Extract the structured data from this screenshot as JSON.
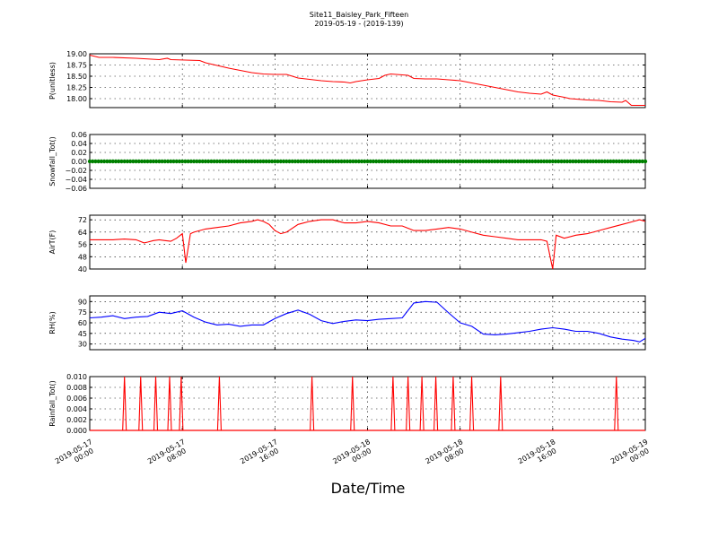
{
  "chart_data": {
    "type": "line",
    "title": "Site11_Baisley_Park_Fifteen",
    "subtitle": "2019-05-19 - (2019-139)",
    "xlabel": "Date/Time",
    "x_range_hours": [
      0,
      48
    ],
    "x_ticks": [
      {
        "hour": 0,
        "line1": "2019-05-17",
        "line2": "00:00"
      },
      {
        "hour": 8,
        "line1": "2019-05-17",
        "line2": "08:00"
      },
      {
        "hour": 16,
        "line1": "2019-05-17",
        "line2": "16:00"
      },
      {
        "hour": 24,
        "line1": "2019-05-18",
        "line2": "00:00"
      },
      {
        "hour": 32,
        "line1": "2019-05-18",
        "line2": "08:00"
      },
      {
        "hour": 40,
        "line1": "2019-05-18",
        "line2": "16:00"
      },
      {
        "hour": 48,
        "line1": "2019-05-19",
        "line2": "00:00"
      }
    ],
    "grid": true,
    "panels": [
      {
        "ylabel": "P(unitless)",
        "color": "#ff0000",
        "style": "line",
        "ylim": [
          17.8,
          19.0
        ],
        "yticks": [
          "19.00",
          "18.75",
          "18.50",
          "18.25",
          "18.00"
        ],
        "ytick_values": [
          19.0,
          18.75,
          18.5,
          18.25,
          18.0
        ],
        "series": [
          [
            0,
            18.97
          ],
          [
            0.8,
            18.92
          ],
          [
            2,
            18.92
          ],
          [
            4,
            18.9
          ],
          [
            6,
            18.87
          ],
          [
            6.7,
            18.9
          ],
          [
            7,
            18.87
          ],
          [
            9.5,
            18.85
          ],
          [
            10,
            18.8
          ],
          [
            11,
            18.74
          ],
          [
            12,
            18.68
          ],
          [
            13,
            18.63
          ],
          [
            14,
            18.58
          ],
          [
            15,
            18.55
          ],
          [
            16,
            18.54
          ],
          [
            17,
            18.54
          ],
          [
            17.5,
            18.5
          ],
          [
            18,
            18.46
          ],
          [
            19,
            18.43
          ],
          [
            20,
            18.4
          ],
          [
            21,
            18.38
          ],
          [
            22,
            18.37
          ],
          [
            22.5,
            18.35
          ],
          [
            23,
            18.38
          ],
          [
            24,
            18.42
          ],
          [
            25,
            18.45
          ],
          [
            25.5,
            18.52
          ],
          [
            26,
            18.55
          ],
          [
            27,
            18.53
          ],
          [
            27.5,
            18.52
          ],
          [
            28,
            18.45
          ],
          [
            29,
            18.44
          ],
          [
            30,
            18.44
          ],
          [
            31,
            18.42
          ],
          [
            32,
            18.4
          ],
          [
            33,
            18.35
          ],
          [
            34,
            18.3
          ],
          [
            35,
            18.25
          ],
          [
            36,
            18.2
          ],
          [
            37,
            18.15
          ],
          [
            38,
            18.12
          ],
          [
            39,
            18.1
          ],
          [
            39.5,
            18.15
          ],
          [
            40,
            18.08
          ],
          [
            41,
            18.03
          ],
          [
            41.5,
            18.0
          ],
          [
            42,
            17.99
          ],
          [
            43,
            17.97
          ],
          [
            44,
            17.96
          ],
          [
            45,
            17.93
          ],
          [
            46,
            17.92
          ],
          [
            46.3,
            17.96
          ],
          [
            46.8,
            17.85
          ],
          [
            48,
            17.85
          ]
        ]
      },
      {
        "ylabel": "Snowfall_Tot()",
        "color": "#008000",
        "style": "markers",
        "ylim": [
          -0.06,
          0.06
        ],
        "yticks": [
          "0.06",
          "0.04",
          "0.02",
          "0.00",
          "−0.02",
          "−0.04",
          "−0.06"
        ],
        "ytick_values": [
          0.06,
          0.04,
          0.02,
          0.0,
          -0.02,
          -0.04,
          -0.06
        ],
        "constant_value": 0.0,
        "sample_interval_hours": 0.25
      },
      {
        "ylabel": "AirT(F)",
        "color": "#ff0000",
        "style": "line",
        "ylim": [
          40,
          75
        ],
        "yticks": [
          "72",
          "64",
          "56",
          "48",
          "40"
        ],
        "ytick_values": [
          72,
          64,
          56,
          48,
          40
        ],
        "series": [
          [
            0,
            59
          ],
          [
            1,
            59
          ],
          [
            2,
            59
          ],
          [
            3,
            59.5
          ],
          [
            4,
            59
          ],
          [
            5,
            57.5
          ],
          [
            4.7,
            57
          ],
          [
            5.5,
            58.5
          ],
          [
            6,
            59
          ],
          [
            6.5,
            58.5
          ],
          [
            7,
            58
          ],
          [
            7.5,
            60
          ],
          [
            8,
            63
          ],
          [
            8.3,
            44
          ],
          [
            8.7,
            63
          ],
          [
            9,
            64
          ],
          [
            10,
            66
          ],
          [
            11,
            67
          ],
          [
            12,
            68
          ],
          [
            13,
            70
          ],
          [
            14,
            71
          ],
          [
            14.5,
            72
          ],
          [
            15,
            71
          ],
          [
            15.5,
            69
          ],
          [
            16,
            65
          ],
          [
            16.5,
            63
          ],
          [
            17,
            64
          ],
          [
            18,
            69
          ],
          [
            19,
            71
          ],
          [
            20,
            72
          ],
          [
            21,
            72
          ],
          [
            22,
            70
          ],
          [
            23,
            70
          ],
          [
            24,
            71
          ],
          [
            25,
            70
          ],
          [
            26,
            68
          ],
          [
            27,
            68
          ],
          [
            28,
            65
          ],
          [
            29,
            65
          ],
          [
            30,
            66
          ],
          [
            31,
            67
          ],
          [
            32,
            66
          ],
          [
            33,
            64
          ],
          [
            34,
            62
          ],
          [
            35,
            61
          ],
          [
            36,
            60
          ],
          [
            37,
            59
          ],
          [
            38,
            59
          ],
          [
            39,
            59
          ],
          [
            39.5,
            58
          ],
          [
            40,
            40
          ],
          [
            40.3,
            62
          ],
          [
            41,
            60
          ],
          [
            42,
            62
          ],
          [
            43,
            63
          ],
          [
            44,
            65
          ],
          [
            45,
            67
          ],
          [
            46,
            69
          ],
          [
            47,
            71
          ],
          [
            47.5,
            72
          ],
          [
            48,
            71
          ]
        ]
      },
      {
        "ylabel": "RH(%)",
        "color": "#0000ff",
        "style": "line",
        "ylim": [
          22,
          98
        ],
        "yticks": [
          "90",
          "75",
          "60",
          "45",
          "30"
        ],
        "ytick_values": [
          90,
          75,
          60,
          45,
          30
        ],
        "series": [
          [
            0,
            67
          ],
          [
            1,
            68
          ],
          [
            2,
            70
          ],
          [
            3,
            66
          ],
          [
            4,
            68
          ],
          [
            5,
            69
          ],
          [
            6,
            75
          ],
          [
            7,
            73
          ],
          [
            8,
            77
          ],
          [
            9,
            68
          ],
          [
            10,
            61
          ],
          [
            11,
            57
          ],
          [
            12,
            58
          ],
          [
            13,
            55
          ],
          [
            14,
            57
          ],
          [
            15,
            57
          ],
          [
            16,
            66
          ],
          [
            17,
            73
          ],
          [
            18,
            78
          ],
          [
            19,
            72
          ],
          [
            20,
            63
          ],
          [
            21,
            59
          ],
          [
            22,
            62
          ],
          [
            23,
            64
          ],
          [
            24,
            63
          ],
          [
            25,
            65
          ],
          [
            26,
            66
          ],
          [
            27,
            67
          ],
          [
            28,
            88
          ],
          [
            29,
            90
          ],
          [
            30,
            89
          ],
          [
            31,
            74
          ],
          [
            32,
            60
          ],
          [
            33,
            55
          ],
          [
            34,
            44
          ],
          [
            35,
            43
          ],
          [
            36,
            44
          ],
          [
            37,
            46
          ],
          [
            38,
            48
          ],
          [
            39,
            51
          ],
          [
            40,
            53
          ],
          [
            41,
            51
          ],
          [
            42,
            48
          ],
          [
            43,
            48
          ],
          [
            44,
            45
          ],
          [
            45,
            40
          ],
          [
            46,
            37
          ],
          [
            47,
            35
          ],
          [
            47.5,
            33
          ],
          [
            48,
            38
          ]
        ]
      },
      {
        "ylabel": "Rainfall_Tot()",
        "color": "#ff0000",
        "style": "spikes",
        "ylim": [
          0,
          0.01
        ],
        "yticks": [
          "0.010",
          "0.008",
          "0.006",
          "0.004",
          "0.002",
          "0.000"
        ],
        "ytick_values": [
          0.01,
          0.008,
          0.006,
          0.004,
          0.002,
          0.0
        ],
        "spike_value": 0.01,
        "spike_hours": [
          3.0,
          4.4,
          5.7,
          6.9,
          7.9,
          11.2,
          19.2,
          22.7,
          26.2,
          27.5,
          28.7,
          29.9,
          31.4,
          33.0,
          35.5,
          45.5
        ]
      }
    ]
  }
}
